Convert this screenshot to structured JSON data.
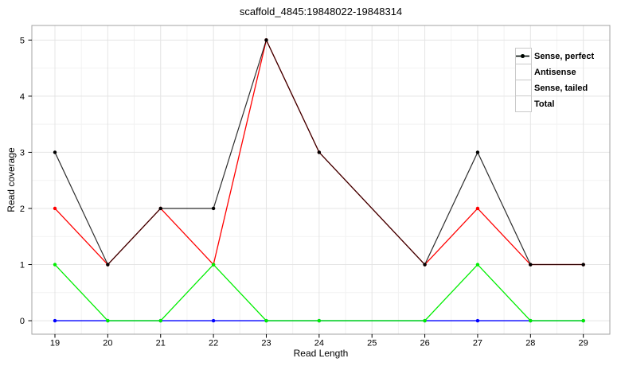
{
  "chart_data": {
    "type": "line",
    "title": "scaffold_4845:19848022-19848314",
    "xlabel": "Read Length",
    "ylabel": "Read coverage",
    "x": [
      19,
      20,
      21,
      22,
      23,
      24,
      26,
      27,
      28,
      29
    ],
    "series": [
      {
        "name": "Sense, perfect",
        "color": "#ff0000",
        "values": [
          2,
          1,
          2,
          1,
          5,
          3,
          1,
          2,
          1,
          1
        ]
      },
      {
        "name": "Antisense",
        "color": "#0000ff",
        "values": [
          0,
          0,
          0,
          0,
          0,
          0,
          0,
          0,
          0,
          0
        ]
      },
      {
        "name": "Sense, tailed",
        "color": "#00ee00",
        "values": [
          1,
          0,
          0,
          1,
          0,
          0,
          0,
          1,
          0,
          0
        ]
      },
      {
        "name": "Total",
        "color": "#000000",
        "values": [
          3,
          1,
          2,
          2,
          5,
          3,
          1,
          3,
          1,
          1
        ]
      }
    ],
    "x_ticks": [
      19,
      20,
      21,
      22,
      23,
      24,
      25,
      26,
      27,
      28,
      29
    ],
    "y_ticks": [
      0,
      1,
      2,
      3,
      4,
      5
    ],
    "xlim": [
      18.563,
      29.502
    ],
    "ylim": [
      -0.24,
      5.26
    ],
    "grid": true,
    "legend_position": "top-right",
    "panel_border_color": "#a3a3a3",
    "major_grid_color": "#e4e4e4",
    "minor_grid_color": "#f2f2f2"
  }
}
